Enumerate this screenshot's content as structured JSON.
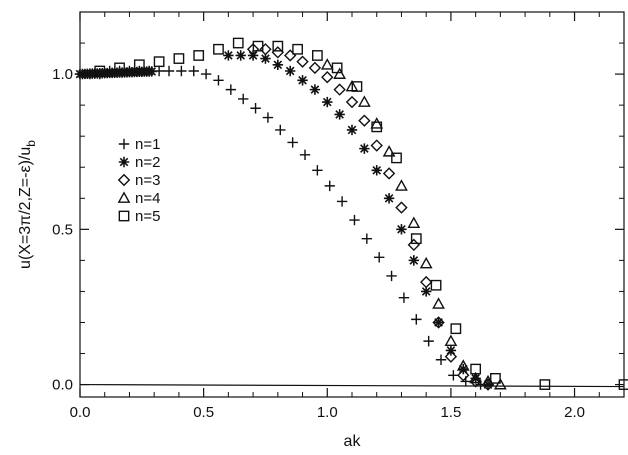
{
  "chart_data": {
    "type": "scatter",
    "xlabel": "ak",
    "ylabel": "u(X=3π/2,Z=-ε)/u_b",
    "ylabel_main": "u(X=3π/2,Z=-ε)/u",
    "ylabel_sub": "b",
    "xlim": [
      0.0,
      2.2
    ],
    "ylim": [
      -0.04,
      1.2
    ],
    "x_ticks": [
      0.0,
      0.5,
      1.0,
      1.5,
      2.0
    ],
    "x_tick_labels": [
      "0.0",
      "0.5",
      "1.0",
      "1.5",
      "2.0"
    ],
    "y_ticks": [
      0.0,
      0.5,
      1.0
    ],
    "y_tick_labels": [
      "0.0",
      "0.5",
      "1.0"
    ],
    "grid": false,
    "reference_line": {
      "y": 0.0
    },
    "legend_position": "left-middle",
    "series": [
      {
        "name": "n=1",
        "marker": "plus",
        "x": [
          0.04,
          0.08,
          0.12,
          0.16,
          0.2,
          0.24,
          0.28,
          0.32,
          0.36,
          0.41,
          0.46,
          0.51,
          0.56,
          0.61,
          0.66,
          0.71,
          0.76,
          0.81,
          0.86,
          0.91,
          0.96,
          1.01,
          1.06,
          1.11,
          1.16,
          1.21,
          1.26,
          1.31,
          1.36,
          1.41,
          1.46,
          1.51,
          1.56,
          1.62
        ],
        "y": [
          1.0,
          1.0,
          1.01,
          1.01,
          1.01,
          1.01,
          1.01,
          1.01,
          1.01,
          1.01,
          1.01,
          1.0,
          0.98,
          0.95,
          0.92,
          0.89,
          0.86,
          0.82,
          0.78,
          0.74,
          0.69,
          0.64,
          0.59,
          0.53,
          0.47,
          0.41,
          0.35,
          0.28,
          0.21,
          0.14,
          0.08,
          0.03,
          0.01,
          0.0
        ]
      },
      {
        "name": "n=2",
        "marker": "star",
        "x": [
          0.6,
          0.65,
          0.7,
          0.75,
          0.8,
          0.85,
          0.9,
          0.95,
          1.0,
          1.05,
          1.1,
          1.15,
          1.2,
          1.25,
          1.3,
          1.35,
          1.4,
          1.45,
          1.5,
          1.55,
          1.6,
          1.65
        ],
        "y": [
          1.06,
          1.06,
          1.06,
          1.05,
          1.03,
          1.01,
          0.98,
          0.95,
          0.91,
          0.87,
          0.82,
          0.76,
          0.69,
          0.6,
          0.5,
          0.4,
          0.3,
          0.2,
          0.11,
          0.05,
          0.02,
          0.0
        ]
      },
      {
        "name": "n=3",
        "marker": "diamond",
        "x": [
          0.7,
          0.75,
          0.8,
          0.85,
          0.9,
          0.95,
          1.0,
          1.05,
          1.1,
          1.15,
          1.2,
          1.25,
          1.3,
          1.35,
          1.4,
          1.45,
          1.5,
          1.55,
          1.6,
          1.65
        ],
        "y": [
          1.08,
          1.08,
          1.07,
          1.06,
          1.04,
          1.02,
          0.99,
          0.95,
          0.91,
          0.85,
          0.77,
          0.68,
          0.57,
          0.45,
          0.33,
          0.2,
          0.09,
          0.03,
          0.01,
          0.0
        ]
      },
      {
        "name": "n=4",
        "marker": "triangle",
        "x": [
          1.0,
          1.05,
          1.1,
          1.15,
          1.2,
          1.25,
          1.3,
          1.35,
          1.4,
          1.45,
          1.5,
          1.55,
          1.6,
          1.65,
          1.7
        ],
        "y": [
          1.03,
          1.0,
          0.96,
          0.91,
          0.84,
          0.75,
          0.64,
          0.52,
          0.39,
          0.26,
          0.14,
          0.06,
          0.02,
          0.01,
          0.0
        ]
      },
      {
        "name": "n=5",
        "marker": "square",
        "x": [
          0.08,
          0.16,
          0.24,
          0.32,
          0.4,
          0.48,
          0.56,
          0.64,
          0.72,
          0.8,
          0.88,
          0.96,
          1.04,
          1.12,
          1.2,
          1.28,
          1.36,
          1.44,
          1.52,
          1.6,
          1.68,
          1.88,
          2.2
        ],
        "y": [
          1.01,
          1.02,
          1.03,
          1.04,
          1.05,
          1.06,
          1.08,
          1.1,
          1.09,
          1.09,
          1.08,
          1.06,
          1.02,
          0.96,
          0.83,
          0.73,
          0.47,
          0.32,
          0.18,
          0.05,
          0.02,
          0.0,
          0.0
        ]
      }
    ]
  }
}
